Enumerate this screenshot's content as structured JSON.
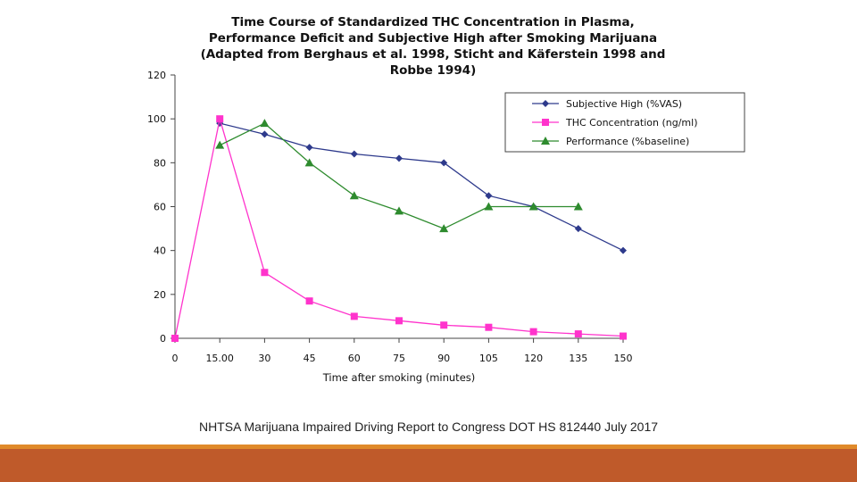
{
  "caption": "NHTSA Marijuana Impaired Driving Report to Congress DOT HS 812440 July 2017",
  "colors": {
    "footer_accent": "#e08a2a",
    "footer_bar": "#bf5a2a"
  },
  "chart_data": {
    "type": "line",
    "title_lines": [
      "Time Course of Standardized THC Concentration in Plasma,",
      "Performance Deficit and Subjective High after Smoking Marijuana",
      "(Adapted from Berghaus et al. 1998, Sticht and Käferstein 1998 and",
      "Robbe 1994)"
    ],
    "xlabel": "Time after smoking (minutes)",
    "ylabel": "",
    "x_tick_labels": [
      "0",
      "15.00",
      "30",
      "45",
      "60",
      "75",
      "90",
      "105",
      "120",
      "135",
      "150"
    ],
    "x_values": [
      0,
      15,
      30,
      45,
      60,
      75,
      90,
      105,
      120,
      135,
      150
    ],
    "xlim": [
      0,
      150
    ],
    "y_ticks": [
      0,
      20,
      40,
      60,
      80,
      100,
      120
    ],
    "y_tick_labels": [
      "0",
      "20",
      "40",
      "60",
      "80",
      "100",
      "120"
    ],
    "ylim": [
      0,
      120
    ],
    "grid": false,
    "legend_position": "top-right",
    "series": [
      {
        "name": "Subjective High (%VAS)",
        "color": "#2e3a8c",
        "marker": "diamond",
        "x": [
          15,
          30,
          45,
          60,
          75,
          90,
          105,
          120,
          135,
          150
        ],
        "values": [
          98,
          93,
          87,
          84,
          82,
          80,
          65,
          60,
          50,
          40
        ]
      },
      {
        "name": "THC Concentration (ng/ml)",
        "color": "#ff33cc",
        "marker": "square",
        "x": [
          0,
          15,
          30,
          45,
          60,
          75,
          90,
          105,
          120,
          135,
          150
        ],
        "values": [
          0,
          100,
          30,
          17,
          10,
          8,
          6,
          5,
          3,
          2,
          1
        ]
      },
      {
        "name": "Performance (%baseline)",
        "color": "#2e8b2e",
        "marker": "triangle",
        "x": [
          15,
          30,
          45,
          60,
          75,
          90,
          105,
          120,
          135
        ],
        "values": [
          88,
          98,
          80,
          65,
          58,
          50,
          60,
          60,
          60
        ]
      }
    ]
  }
}
